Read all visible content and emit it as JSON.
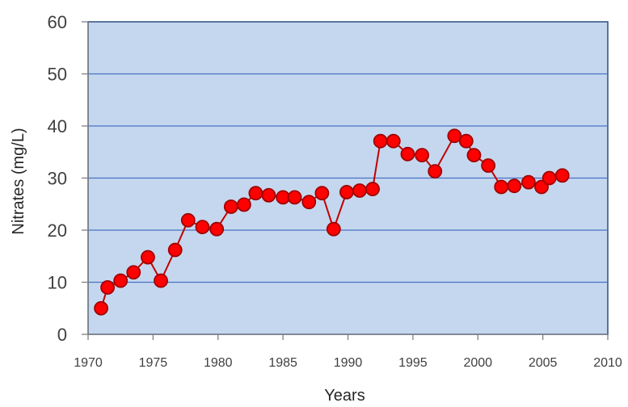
{
  "chart_data": {
    "type": "line",
    "title": "",
    "xlabel": "Years",
    "ylabel": "Nitrates (mg/L)",
    "xlim": [
      1970,
      2010
    ],
    "ylim": [
      0,
      60
    ],
    "x_ticks": [
      1970,
      1975,
      1980,
      1985,
      1990,
      1995,
      2000,
      2005,
      2010
    ],
    "y_ticks": [
      0,
      10,
      20,
      30,
      40,
      50,
      60
    ],
    "grid": "horizontal",
    "legend": "none",
    "colors": {
      "plot_background": "#c5d7ee",
      "plot_border": "#2f4f80",
      "gridline": "#4a72c4",
      "marker_fill": "#ff0000",
      "marker_edge": "#a00000",
      "line": "#c00000"
    },
    "series": [
      {
        "x": [
          1971.0,
          1971.5,
          1972.5,
          1973.5,
          1974.6,
          1975.6,
          1976.7,
          1977.7,
          1978.8,
          1979.9,
          1981.0,
          1982.0,
          1982.9,
          1983.9,
          1985.0,
          1985.9,
          1987.0,
          1988.0,
          1988.9,
          1989.9,
          1990.9,
          1991.9,
          1992.5,
          1993.5,
          1994.6,
          1995.7,
          1996.7,
          1998.2,
          1999.1,
          1999.7,
          2000.8,
          2001.8,
          2002.8,
          2003.9,
          2004.9,
          2005.5,
          2006.5
        ],
        "y": [
          5.0,
          9.0,
          10.3,
          11.9,
          14.8,
          10.3,
          16.2,
          21.9,
          20.6,
          20.2,
          24.5,
          24.9,
          27.1,
          26.7,
          26.3,
          26.3,
          25.4,
          27.1,
          20.2,
          27.3,
          27.6,
          27.9,
          37.1,
          37.1,
          34.6,
          34.4,
          31.3,
          38.1,
          37.1,
          34.4,
          32.4,
          28.3,
          28.5,
          29.2,
          28.3,
          30.0,
          30.5
        ]
      }
    ]
  }
}
